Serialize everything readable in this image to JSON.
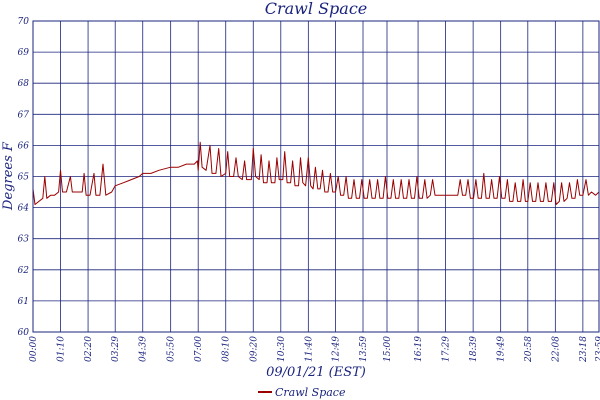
{
  "chart_data": {
    "type": "line",
    "title": "Crawl Space",
    "xlabel": "09/01/21 (EST)",
    "ylabel": "Degrees F",
    "ylim": [
      60,
      70
    ],
    "yticks": [
      60,
      61,
      62,
      63,
      64,
      65,
      66,
      67,
      68,
      69,
      70
    ],
    "xticks": [
      "00:00",
      "01:10",
      "02:20",
      "03:29",
      "04:39",
      "05:50",
      "07:00",
      "08:10",
      "09:20",
      "10:30",
      "11:40",
      "12:49",
      "13:59",
      "15:00",
      "16:19",
      "17:29",
      "18:39",
      "19:49",
      "20:58",
      "22:08",
      "23:18",
      "23:59"
    ],
    "grid": true,
    "legend": "bottom-center",
    "colors": {
      "series": "#9b0000",
      "grid": "#1a237e",
      "text": "#1a237e"
    },
    "series": [
      {
        "name": "Crawl Space",
        "points": [
          [
            "00:00",
            64.6
          ],
          [
            "00:05",
            64.1
          ],
          [
            "00:15",
            64.2
          ],
          [
            "00:25",
            64.3
          ],
          [
            "00:30",
            65.0
          ],
          [
            "00:35",
            64.3
          ],
          [
            "00:45",
            64.4
          ],
          [
            "00:55",
            64.4
          ],
          [
            "01:05",
            64.5
          ],
          [
            "01:10",
            65.2
          ],
          [
            "01:15",
            64.5
          ],
          [
            "01:25",
            64.5
          ],
          [
            "01:35",
            65.0
          ],
          [
            "01:40",
            64.5
          ],
          [
            "01:55",
            64.5
          ],
          [
            "02:05",
            64.5
          ],
          [
            "02:10",
            65.1
          ],
          [
            "02:15",
            64.4
          ],
          [
            "02:25",
            64.4
          ],
          [
            "02:35",
            65.1
          ],
          [
            "02:40",
            64.4
          ],
          [
            "02:50",
            64.4
          ],
          [
            "02:58",
            65.4
          ],
          [
            "03:05",
            64.4
          ],
          [
            "03:20",
            64.5
          ],
          [
            "03:29",
            64.7
          ],
          [
            "03:50",
            64.8
          ],
          [
            "04:10",
            64.9
          ],
          [
            "04:30",
            65.0
          ],
          [
            "04:39",
            65.1
          ],
          [
            "05:00",
            65.1
          ],
          [
            "05:20",
            65.2
          ],
          [
            "05:50",
            65.3
          ],
          [
            "06:10",
            65.3
          ],
          [
            "06:30",
            65.4
          ],
          [
            "06:50",
            65.4
          ],
          [
            "06:58",
            65.5
          ],
          [
            "07:00",
            65.2
          ],
          [
            "07:05",
            66.1
          ],
          [
            "07:10",
            65.3
          ],
          [
            "07:20",
            65.2
          ],
          [
            "07:30",
            66.0
          ],
          [
            "07:35",
            65.1
          ],
          [
            "07:45",
            65.1
          ],
          [
            "07:52",
            65.9
          ],
          [
            "07:58",
            65.0
          ],
          [
            "08:10",
            65.1
          ],
          [
            "08:15",
            65.8
          ],
          [
            "08:20",
            65.0
          ],
          [
            "08:30",
            65.0
          ],
          [
            "08:36",
            65.6
          ],
          [
            "08:42",
            65.0
          ],
          [
            "08:52",
            64.9
          ],
          [
            "08:58",
            65.5
          ],
          [
            "09:03",
            64.9
          ],
          [
            "09:15",
            64.9
          ],
          [
            "09:20",
            65.9
          ],
          [
            "09:26",
            65.0
          ],
          [
            "09:35",
            64.9
          ],
          [
            "09:40",
            65.7
          ],
          [
            "09:46",
            64.8
          ],
          [
            "09:55",
            64.8
          ],
          [
            "10:00",
            65.5
          ],
          [
            "10:06",
            64.8
          ],
          [
            "10:15",
            64.8
          ],
          [
            "10:20",
            65.6
          ],
          [
            "10:26",
            64.9
          ],
          [
            "10:35",
            64.9
          ],
          [
            "10:40",
            65.8
          ],
          [
            "10:46",
            64.8
          ],
          [
            "10:55",
            64.8
          ],
          [
            "11:00",
            65.5
          ],
          [
            "11:06",
            64.7
          ],
          [
            "11:15",
            64.7
          ],
          [
            "11:20",
            65.6
          ],
          [
            "11:26",
            64.8
          ],
          [
            "11:33",
            64.7
          ],
          [
            "11:40",
            65.6
          ],
          [
            "11:46",
            64.7
          ],
          [
            "11:52",
            64.6
          ],
          [
            "11:58",
            65.3
          ],
          [
            "12:04",
            64.6
          ],
          [
            "12:10",
            64.6
          ],
          [
            "12:16",
            65.2
          ],
          [
            "12:22",
            64.5
          ],
          [
            "12:30",
            64.5
          ],
          [
            "12:36",
            65.1
          ],
          [
            "12:42",
            64.5
          ],
          [
            "12:49",
            64.5
          ],
          [
            "12:56",
            65.0
          ],
          [
            "13:02",
            64.4
          ],
          [
            "13:10",
            64.4
          ],
          [
            "13:16",
            65.0
          ],
          [
            "13:22",
            64.3
          ],
          [
            "13:30",
            64.3
          ],
          [
            "13:36",
            64.9
          ],
          [
            "13:42",
            64.3
          ],
          [
            "13:50",
            64.3
          ],
          [
            "13:56",
            64.9
          ],
          [
            "14:02",
            64.3
          ],
          [
            "14:10",
            64.3
          ],
          [
            "14:16",
            64.9
          ],
          [
            "14:22",
            64.3
          ],
          [
            "14:30",
            64.3
          ],
          [
            "14:36",
            64.9
          ],
          [
            "14:42",
            64.3
          ],
          [
            "14:50",
            64.3
          ],
          [
            "14:56",
            65.0
          ],
          [
            "15:02",
            64.3
          ],
          [
            "15:10",
            64.3
          ],
          [
            "15:16",
            64.9
          ],
          [
            "15:22",
            64.3
          ],
          [
            "15:30",
            64.3
          ],
          [
            "15:36",
            64.9
          ],
          [
            "15:42",
            64.3
          ],
          [
            "15:50",
            64.3
          ],
          [
            "15:56",
            64.9
          ],
          [
            "16:02",
            64.3
          ],
          [
            "16:10",
            64.3
          ],
          [
            "16:16",
            65.0
          ],
          [
            "16:22",
            64.3
          ],
          [
            "16:30",
            64.3
          ],
          [
            "16:36",
            64.9
          ],
          [
            "16:42",
            64.3
          ],
          [
            "16:50",
            64.4
          ],
          [
            "16:56",
            64.9
          ],
          [
            "17:02",
            64.4
          ],
          [
            "17:15",
            64.4
          ],
          [
            "17:29",
            64.4
          ],
          [
            "17:45",
            64.4
          ],
          [
            "18:00",
            64.4
          ],
          [
            "18:06",
            64.9
          ],
          [
            "18:12",
            64.4
          ],
          [
            "18:20",
            64.4
          ],
          [
            "18:26",
            64.9
          ],
          [
            "18:32",
            64.3
          ],
          [
            "18:40",
            64.3
          ],
          [
            "18:46",
            64.9
          ],
          [
            "18:52",
            64.3
          ],
          [
            "19:00",
            64.3
          ],
          [
            "19:06",
            65.1
          ],
          [
            "19:12",
            64.3
          ],
          [
            "19:20",
            64.3
          ],
          [
            "19:26",
            64.9
          ],
          [
            "19:32",
            64.3
          ],
          [
            "19:40",
            64.3
          ],
          [
            "19:46",
            65.0
          ],
          [
            "19:52",
            64.3
          ],
          [
            "20:00",
            64.3
          ],
          [
            "20:06",
            64.9
          ],
          [
            "20:12",
            64.2
          ],
          [
            "20:20",
            64.2
          ],
          [
            "20:26",
            64.8
          ],
          [
            "20:32",
            64.2
          ],
          [
            "20:40",
            64.2
          ],
          [
            "20:46",
            64.9
          ],
          [
            "20:52",
            64.2
          ],
          [
            "20:58",
            64.2
          ],
          [
            "21:04",
            64.8
          ],
          [
            "21:10",
            64.2
          ],
          [
            "21:18",
            64.2
          ],
          [
            "21:24",
            64.8
          ],
          [
            "21:30",
            64.2
          ],
          [
            "21:38",
            64.2
          ],
          [
            "21:44",
            64.8
          ],
          [
            "21:50",
            64.2
          ],
          [
            "21:58",
            64.2
          ],
          [
            "22:04",
            64.8
          ],
          [
            "22:10",
            64.1
          ],
          [
            "22:18",
            64.2
          ],
          [
            "22:24",
            64.8
          ],
          [
            "22:30",
            64.2
          ],
          [
            "22:38",
            64.3
          ],
          [
            "22:44",
            64.8
          ],
          [
            "22:50",
            64.3
          ],
          [
            "22:58",
            64.3
          ],
          [
            "23:04",
            64.9
          ],
          [
            "23:10",
            64.4
          ],
          [
            "23:18",
            64.4
          ],
          [
            "23:26",
            64.9
          ],
          [
            "23:32",
            64.4
          ],
          [
            "23:40",
            64.5
          ],
          [
            "23:50",
            64.4
          ],
          [
            "23:59",
            64.5
          ]
        ]
      }
    ]
  }
}
